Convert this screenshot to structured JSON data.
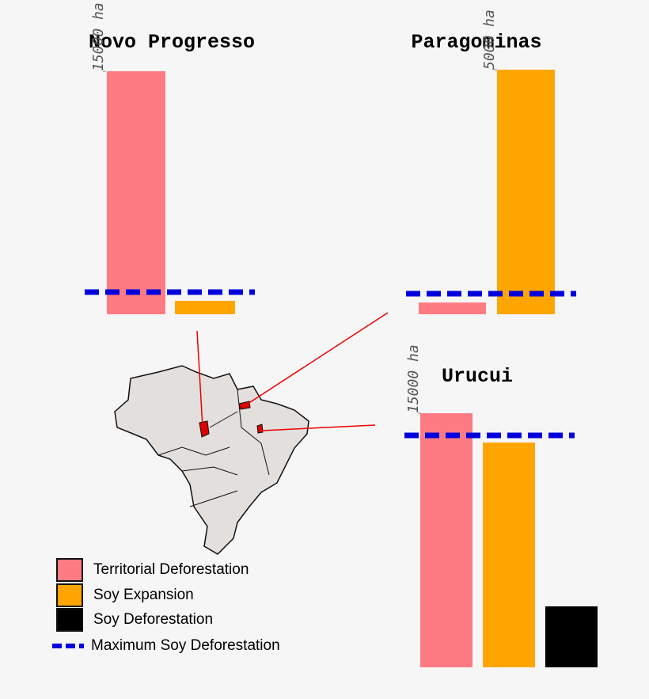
{
  "legend": [
    {
      "name": "Territorial Deforestation",
      "color": "#ff7b83"
    },
    {
      "name": "Soy Expansion",
      "color": "#ffa500"
    },
    {
      "name": "Soy Deforestation",
      "color": "#000000"
    },
    {
      "name": "Maximum Soy Deforestation",
      "color": "#0000dd"
    }
  ],
  "chart_data": [
    {
      "type": "bar",
      "title": "Novo Progresso",
      "values": [
        15000,
        830
      ],
      "reference_line": 1370,
      "ylim": [
        0,
        15000
      ],
      "yticks": [
        {
          "value": 15000,
          "label": "15000 ha"
        }
      ]
    },
    {
      "type": "bar",
      "title": "Paragominas",
      "values": [
        240,
        5000
      ],
      "reference_line": 420,
      "ylim": [
        0,
        5000
      ],
      "yticks": [
        {
          "value": 5000,
          "label": "5000 ha"
        }
      ]
    },
    {
      "type": "bar",
      "title": "Urucui",
      "values": [
        15000,
        13270,
        3600
      ],
      "reference_line": 13690,
      "ylim": [
        0,
        15000
      ],
      "yticks": [
        {
          "value": 15000,
          "label": "15000 ha"
        }
      ]
    }
  ]
}
